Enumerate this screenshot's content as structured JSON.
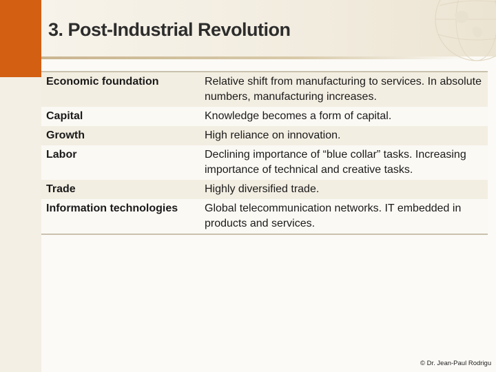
{
  "slide": {
    "title": "3. Post-Industrial Revolution",
    "rows": [
      {
        "label": "Economic foundation",
        "value": "Relative shift from manufacturing to services. In absolute numbers, manufacturing increases."
      },
      {
        "label": "Capital",
        "value": "Knowledge becomes a form of capital."
      },
      {
        "label": "Growth",
        "value": "High reliance on innovation."
      },
      {
        "label": "Labor",
        "value": "Declining importance of “blue collar” tasks. Increasing importance of technical and creative tasks."
      },
      {
        "label": "Trade",
        "value": "Highly diversified trade."
      },
      {
        "label": "Information technologies",
        "value": "Global telecommunication networks. IT embedded in products and services."
      }
    ],
    "copyright": "© Dr. Jean-Paul Rodrigu"
  },
  "colors": {
    "accent": "#d35f12",
    "row_tint": "#f3eee2",
    "rule": "#c9c1ad"
  }
}
